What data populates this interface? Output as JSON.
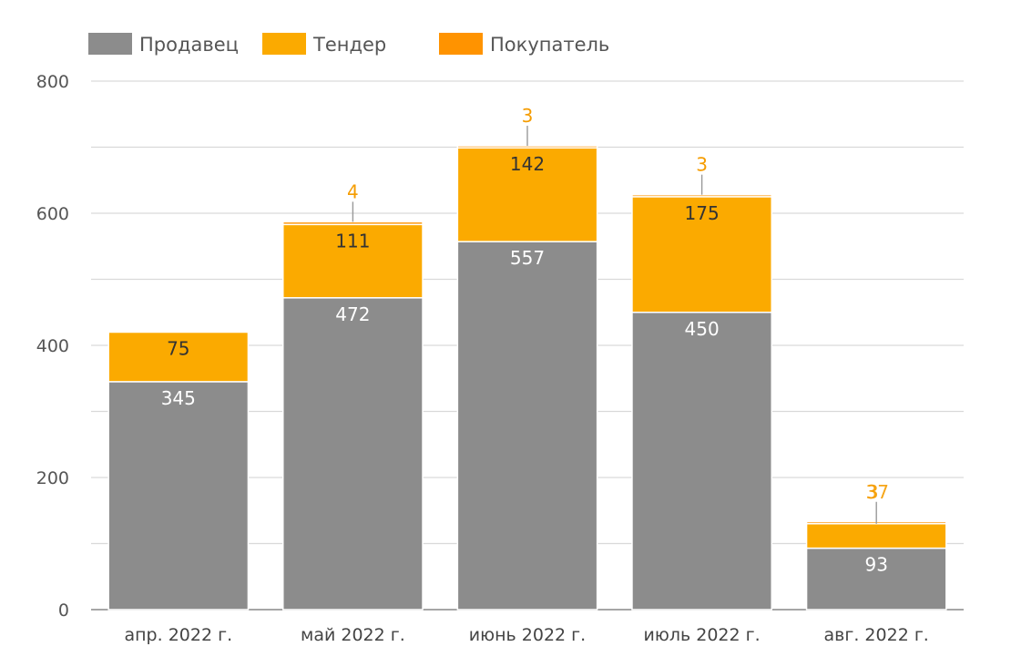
{
  "chart_data": {
    "type": "bar",
    "stacked": true,
    "categories": [
      "апр. 2022 г.",
      "май 2022 г.",
      "июнь 2022 г.",
      "июль 2022 г.",
      "авг. 2022 г."
    ],
    "series": [
      {
        "name": "Продавец",
        "color": "#8c8c8c",
        "values": [
          345,
          472,
          557,
          450,
          93
        ]
      },
      {
        "name": "Тендер",
        "color": "#fbaa00",
        "values": [
          75,
          111,
          142,
          175,
          37
        ]
      },
      {
        "name": "Покупатель",
        "color": "#ff9300",
        "values": [
          0,
          4,
          3,
          3,
          3
        ]
      }
    ],
    "ylim": [
      0,
      800
    ],
    "yticks": [
      0,
      200,
      400,
      600,
      800
    ],
    "grid": true,
    "legend": "top-left"
  }
}
